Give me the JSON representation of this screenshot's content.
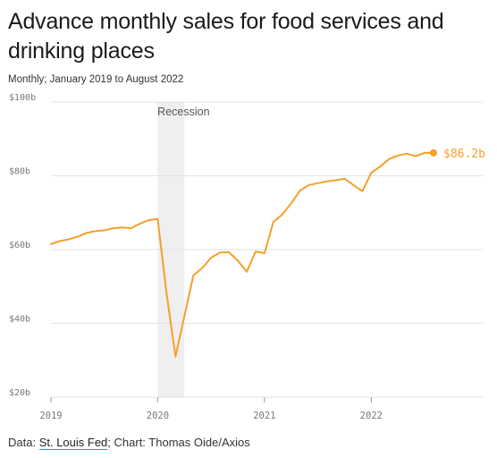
{
  "header": {
    "title": "Advance monthly sales for food services and drinking places",
    "subtitle": "Monthly; January 2019 to August 2022"
  },
  "footer": {
    "prefix": "Data: ",
    "source_link": "St. Louis Fed",
    "suffix": "; Chart: Thomas Oide/Axios"
  },
  "colors": {
    "line": "#F5A02A",
    "grid": "#e3e3e3",
    "recession_band": "#efefef",
    "axis_text": "#777777"
  },
  "chart_data": {
    "type": "line",
    "title": "Advance monthly sales for food services and drinking places",
    "subtitle": "Monthly; January 2019 to August 2022",
    "ylim": [
      20,
      100
    ],
    "yticks": [
      20,
      40,
      60,
      80,
      100
    ],
    "ytick_labels": [
      "$20b",
      "$40b",
      "$60b",
      "$80b",
      "$100b"
    ],
    "xlim": [
      "2019-01",
      "2022-08"
    ],
    "xticks": [
      "2019-01",
      "2020-01",
      "2021-01",
      "2022-01"
    ],
    "xtick_labels": [
      "2019",
      "2020",
      "2021",
      "2022"
    ],
    "grid": "horizontal",
    "recession": {
      "label": "Recession",
      "start": "2020-01",
      "end": "2020-04"
    },
    "end_label": "$86.2b",
    "series": [
      {
        "x": [
          "2019-01",
          "2019-02",
          "2019-03",
          "2019-04",
          "2019-05",
          "2019-06",
          "2019-07",
          "2019-08",
          "2019-09",
          "2019-10",
          "2019-11",
          "2019-12",
          "2020-01",
          "2020-02",
          "2020-03",
          "2020-04",
          "2020-05",
          "2020-06",
          "2020-07",
          "2020-08",
          "2020-09",
          "2020-10",
          "2020-11",
          "2020-12",
          "2021-01",
          "2021-02",
          "2021-03",
          "2021-04",
          "2021-05",
          "2021-06",
          "2021-07",
          "2021-08",
          "2021-09",
          "2021-10",
          "2021-11",
          "2021-12",
          "2022-01",
          "2022-02",
          "2022-03",
          "2022-04",
          "2022-05",
          "2022-06",
          "2022-07",
          "2022-08"
        ],
        "values": [
          61.5,
          62.3,
          62.8,
          63.5,
          64.5,
          65.0,
          65.2,
          65.8,
          66.0,
          65.8,
          67.0,
          68.0,
          68.3,
          48.0,
          31.0,
          42.0,
          53.0,
          55.0,
          57.8,
          59.2,
          59.3,
          57.0,
          54.0,
          59.5,
          59.0,
          67.5,
          69.5,
          72.5,
          76.0,
          77.5,
          78.0,
          78.5,
          78.8,
          79.2,
          77.5,
          75.8,
          80.8,
          82.5,
          84.5,
          85.5,
          86.0,
          85.3,
          86.2,
          86.2
        ]
      }
    ]
  }
}
